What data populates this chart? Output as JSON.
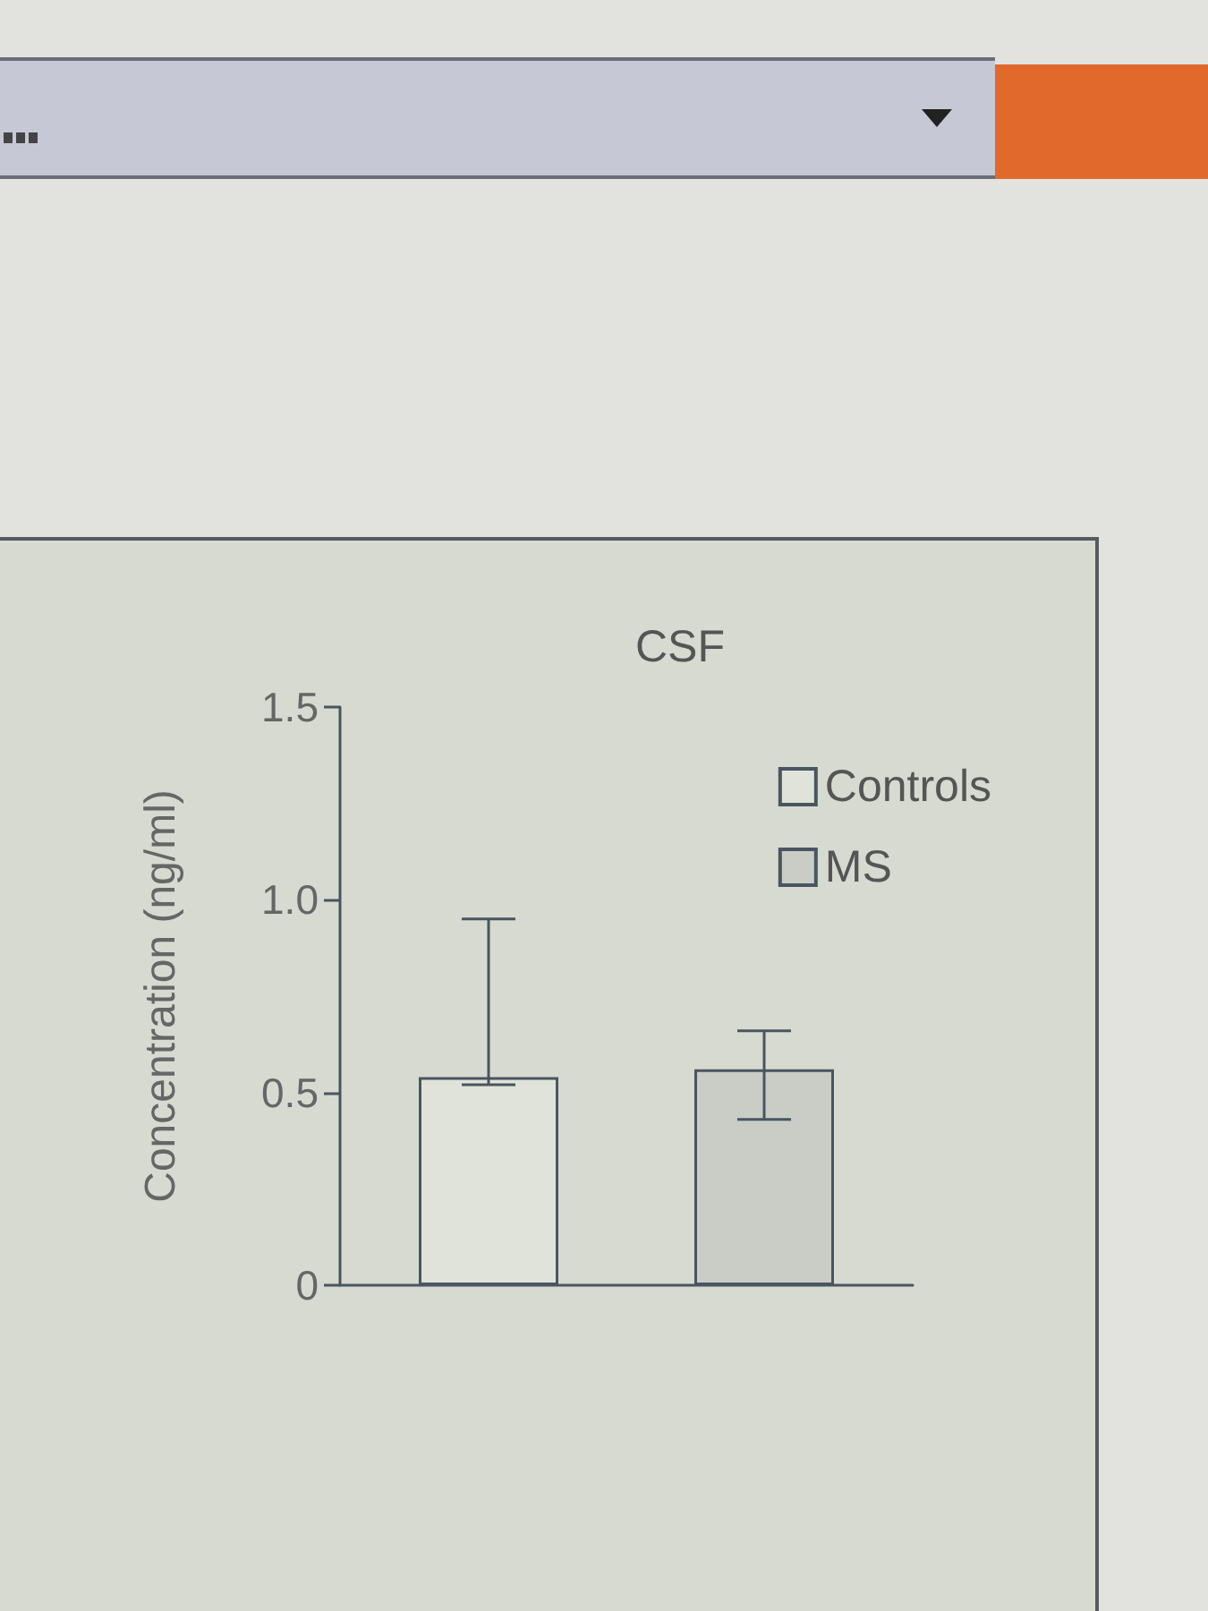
{
  "chart_data": {
    "type": "bar",
    "title": "CSF",
    "ylabel": "Concentration (ng/ml)",
    "categories": [
      null
    ],
    "series": [
      {
        "name": "Controls",
        "color": "#e0e3da",
        "values": [
          0.54
        ],
        "errors": [
          [
            0.52,
            0.95
          ]
        ]
      },
      {
        "name": "MS",
        "color": "#c9cdc6",
        "values": [
          0.56
        ],
        "errors": [
          [
            0.43,
            0.66
          ]
        ]
      }
    ],
    "ylim": [
      0,
      1.5
    ],
    "yticks": [
      0,
      0.5,
      {
        "value": 1,
        "label": "1.0"
      },
      1.5
    ],
    "legend": "top right",
    "tick_labels": "y"
  }
}
